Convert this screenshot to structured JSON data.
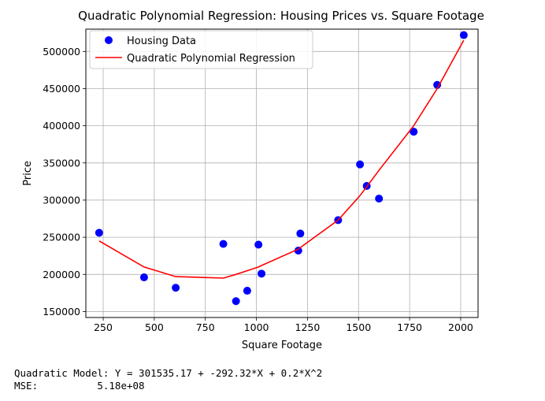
{
  "chart_data": {
    "type": "scatter",
    "title": "Quadratic Polynomial Regression: Housing Prices vs. Square Footage",
    "xlabel": "Square Footage",
    "ylabel": "Price",
    "xlim": [
      165,
      2085
    ],
    "ylim": [
      142000,
      530000
    ],
    "xticks": [
      250,
      500,
      750,
      1000,
      1250,
      1500,
      1750,
      2000
    ],
    "yticks": [
      150000,
      200000,
      250000,
      300000,
      350000,
      400000,
      450000,
      500000
    ],
    "grid": true,
    "legend_position": "top-left",
    "series": [
      {
        "name": "Housing Data",
        "kind": "scatter",
        "color": "#0000ff",
        "x": [
          230,
          450,
          605,
          838,
          900,
          955,
          1010,
          1025,
          1205,
          1215,
          1400,
          1507,
          1540,
          1600,
          1770,
          1885,
          2015
        ],
        "y": [
          256000,
          196000,
          182000,
          241000,
          164000,
          178000,
          240000,
          201000,
          232000,
          255000,
          273000,
          348000,
          319000,
          302000,
          392000,
          455000,
          522000
        ]
      },
      {
        "name": "Quadratic Polynomial Regression",
        "kind": "line",
        "color": "#ff0000",
        "x": [
          230,
          450,
          605,
          838,
          900,
          955,
          1010,
          1025,
          1205,
          1215,
          1400,
          1507,
          1540,
          1600,
          1770,
          1885,
          2015
        ],
        "y": [
          245000,
          210000,
          197000,
          195000,
          200000,
          205000,
          210000,
          212000,
          234000,
          236000,
          273000,
          306000,
          318000,
          340000,
          400000,
          450000,
          515000
        ]
      }
    ]
  },
  "caption": {
    "line1": "Quadratic Model: Y = 301535.17 + -292.32*X + 0.2*X^2",
    "line2": "MSE:          5.18e+08"
  }
}
